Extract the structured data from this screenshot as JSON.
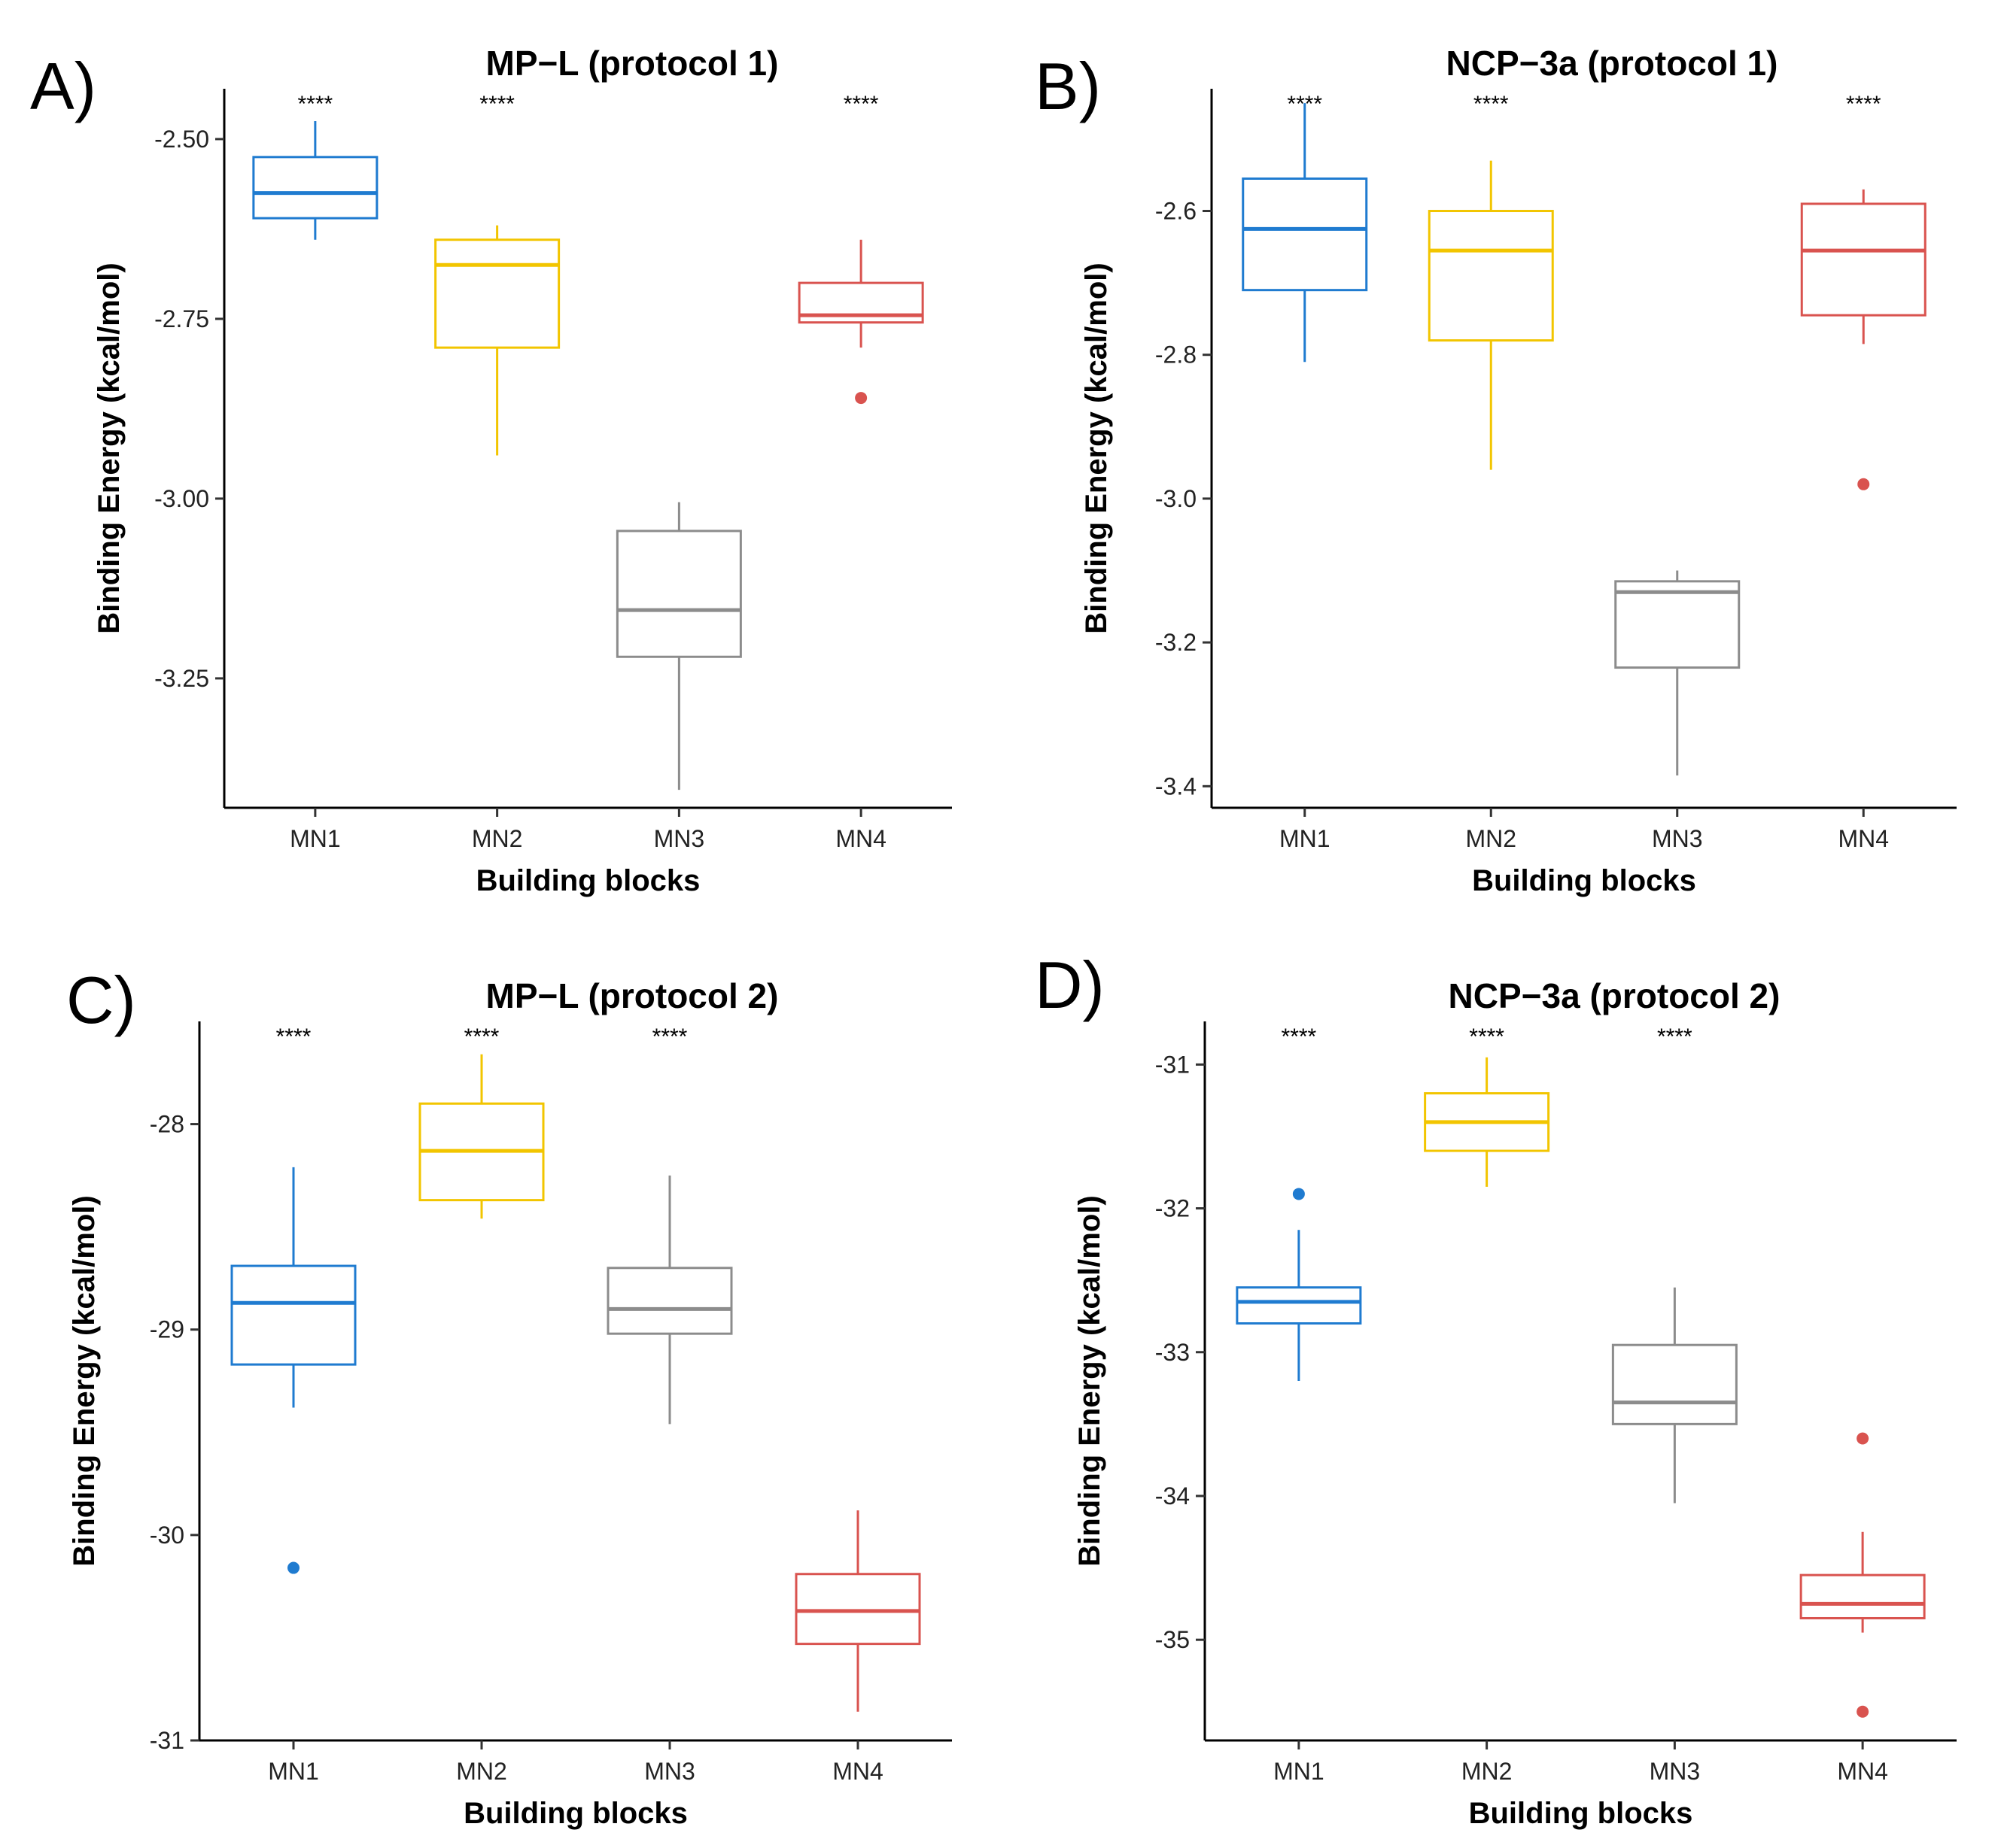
{
  "figure": {
    "panels": [
      "A)",
      "B)",
      "C)",
      "D)"
    ]
  },
  "colors": {
    "MN1": "#1f7bd0",
    "MN2": "#f2c500",
    "MN3": "#8c8c8c",
    "MN4": "#d9534f",
    "axis": "#000000"
  },
  "chart_data": [
    {
      "type": "box",
      "panel": "A)",
      "title": "MP−L (protocol 1)",
      "xlabel": "Building blocks",
      "ylabel": "Binding Energy (kcal/mol)",
      "ylim": [
        -3.43,
        -2.43
      ],
      "yticks": [
        -2.5,
        -2.75,
        -3.0,
        -3.25
      ],
      "ytick_labels": [
        "-2.50",
        "-2.75",
        "-3.00",
        "-3.25"
      ],
      "categories": [
        "MN1",
        "MN2",
        "MN3",
        "MN4"
      ],
      "boxes": [
        {
          "name": "MN1",
          "q1": -2.61,
          "median": -2.575,
          "q3": -2.525,
          "whisker_low": -2.64,
          "whisker_high": -2.475,
          "outliers": [],
          "sig": "****"
        },
        {
          "name": "MN2",
          "q1": -2.79,
          "median": -2.675,
          "q3": -2.64,
          "whisker_low": -2.94,
          "whisker_high": -2.62,
          "outliers": [],
          "sig": "****"
        },
        {
          "name": "MN3",
          "q1": -3.22,
          "median": -3.155,
          "q3": -3.045,
          "whisker_low": -3.405,
          "whisker_high": -3.005,
          "outliers": [],
          "sig": ""
        },
        {
          "name": "MN4",
          "q1": -2.755,
          "median": -2.745,
          "q3": -2.7,
          "whisker_low": -2.79,
          "whisker_high": -2.64,
          "outliers": [
            -2.86
          ],
          "sig": "****"
        }
      ]
    },
    {
      "type": "box",
      "panel": "B)",
      "title": "NCP−3a (protocol 1)",
      "xlabel": "Building blocks",
      "ylabel": "Binding Energy (kcal/mol)",
      "ylim": [
        -3.43,
        -2.43
      ],
      "yticks": [
        -2.6,
        -2.8,
        -3.0,
        -3.2,
        -3.4
      ],
      "ytick_labels": [
        "-2.6",
        "-2.8",
        "-3.0",
        "-3.2",
        "-3.4"
      ],
      "categories": [
        "MN1",
        "MN2",
        "MN3",
        "MN4"
      ],
      "boxes": [
        {
          "name": "MN1",
          "q1": -2.71,
          "median": -2.625,
          "q3": -2.555,
          "whisker_low": -2.81,
          "whisker_high": -2.45,
          "outliers": [],
          "sig": "****"
        },
        {
          "name": "MN2",
          "q1": -2.78,
          "median": -2.655,
          "q3": -2.6,
          "whisker_low": -2.96,
          "whisker_high": -2.53,
          "outliers": [],
          "sig": "****"
        },
        {
          "name": "MN3",
          "q1": -3.235,
          "median": -3.13,
          "q3": -3.115,
          "whisker_low": -3.385,
          "whisker_high": -3.1,
          "outliers": [],
          "sig": ""
        },
        {
          "name": "MN4",
          "q1": -2.745,
          "median": -2.655,
          "q3": -2.59,
          "whisker_low": -2.785,
          "whisker_high": -2.57,
          "outliers": [
            -2.98
          ],
          "sig": "****"
        }
      ]
    },
    {
      "type": "box",
      "panel": "C)",
      "title": "MP−L (protocol 2)",
      "xlabel": "Building blocks",
      "ylabel": "Binding Energy (kcal/mol)",
      "ylim": [
        -31.0,
        -27.5
      ],
      "yticks": [
        -28,
        -29,
        -30,
        -31
      ],
      "ytick_labels": [
        "-28",
        "-29",
        "-30",
        "-31"
      ],
      "categories": [
        "MN1",
        "MN2",
        "MN3",
        "MN4"
      ],
      "boxes": [
        {
          "name": "MN1",
          "q1": -29.17,
          "median": -28.87,
          "q3": -28.69,
          "whisker_low": -29.38,
          "whisker_high": -28.21,
          "outliers": [
            -30.16
          ],
          "sig": "****"
        },
        {
          "name": "MN2",
          "q1": -28.37,
          "median": -28.13,
          "q3": -27.9,
          "whisker_low": -28.46,
          "whisker_high": -27.66,
          "outliers": [],
          "sig": "****"
        },
        {
          "name": "MN3",
          "q1": -29.02,
          "median": -28.9,
          "q3": -28.7,
          "whisker_low": -29.46,
          "whisker_high": -28.25,
          "outliers": [],
          "sig": "****"
        },
        {
          "name": "MN4",
          "q1": -30.53,
          "median": -30.37,
          "q3": -30.19,
          "whisker_low": -30.86,
          "whisker_high": -29.88,
          "outliers": [],
          "sig": ""
        }
      ]
    },
    {
      "type": "box",
      "panel": "D)",
      "title": "NCP−3a (protocol 2)",
      "xlabel": "Building blocks",
      "ylabel": "Binding Energy (kcal/mol)",
      "ylim": [
        -35.7,
        -30.7
      ],
      "yticks": [
        -31,
        -32,
        -33,
        -34,
        -35
      ],
      "ytick_labels": [
        "-31",
        "-32",
        "-33",
        "-34",
        "-35"
      ],
      "categories": [
        "MN1",
        "MN2",
        "MN3",
        "MN4"
      ],
      "boxes": [
        {
          "name": "MN1",
          "q1": -32.8,
          "median": -32.65,
          "q3": -32.55,
          "whisker_low": -33.2,
          "whisker_high": -32.15,
          "outliers": [
            -31.9
          ],
          "sig": "****"
        },
        {
          "name": "MN2",
          "q1": -31.6,
          "median": -31.4,
          "q3": -31.2,
          "whisker_low": -31.85,
          "whisker_high": -30.95,
          "outliers": [],
          "sig": "****"
        },
        {
          "name": "MN3",
          "q1": -33.5,
          "median": -33.35,
          "q3": -32.95,
          "whisker_low": -34.05,
          "whisker_high": -32.55,
          "outliers": [],
          "sig": "****"
        },
        {
          "name": "MN4",
          "q1": -34.85,
          "median": -34.75,
          "q3": -34.55,
          "whisker_low": -34.95,
          "whisker_high": -34.25,
          "outliers": [
            -33.6,
            -35.5
          ],
          "sig": ""
        }
      ]
    }
  ]
}
